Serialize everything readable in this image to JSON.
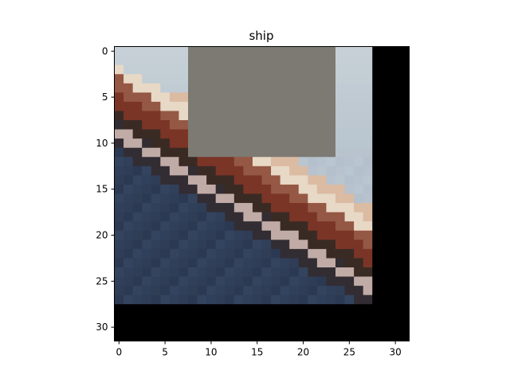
{
  "title": "ship",
  "image": {
    "grid_size": 32,
    "occlusion": {
      "color": "#7d7a73",
      "rows": [
        0,
        11
      ],
      "cols": [
        8,
        23
      ]
    },
    "pad_color": "#000000",
    "content_extent": {
      "rows": [
        0,
        27
      ],
      "cols": [
        0,
        27
      ]
    },
    "colors": {
      "sky": "#b4c0cc",
      "sky_top": "#c6d0d6",
      "hull_dark": "#3a2a24",
      "hull_red": "#7a3526",
      "deck_light": "#e8d8c6",
      "deck_tan": "#d2a88a",
      "water": "#34445e",
      "water_dark": "#27324a",
      "railing": "#c0aba6"
    }
  },
  "axes": {
    "x_ticks": [
      "0",
      "5",
      "10",
      "15",
      "20",
      "25",
      "30"
    ],
    "y_ticks": [
      "0",
      "5",
      "10",
      "15",
      "20",
      "25",
      "30"
    ],
    "x_tick_values": [
      0,
      5,
      10,
      15,
      20,
      25,
      30
    ],
    "y_tick_values": [
      0,
      5,
      10,
      15,
      20,
      25,
      30
    ]
  }
}
